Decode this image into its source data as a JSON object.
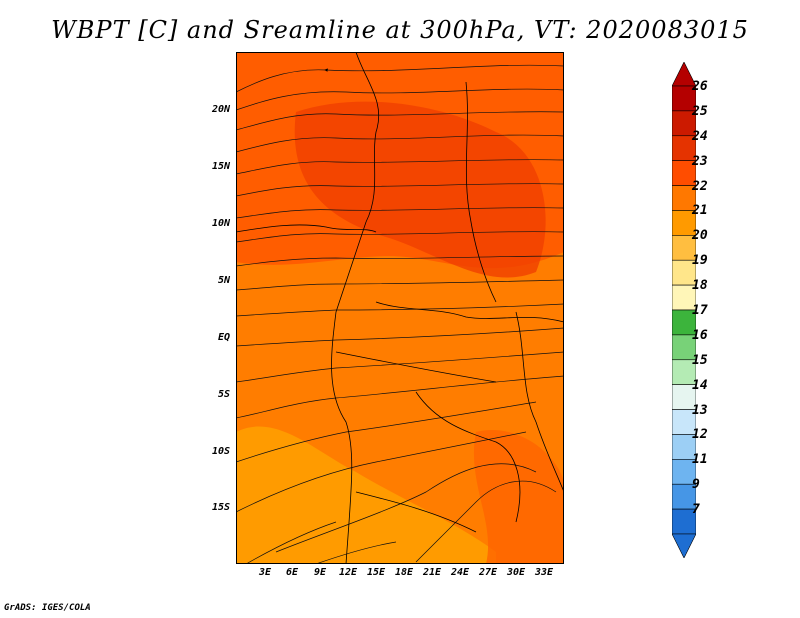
{
  "title": "WBPT [C] and Sreamline at 300hPa, VT: 2020083015",
  "credit": "GrADS: IGES/COLA",
  "lat_labels": [
    "20N",
    "15N",
    "10N",
    "5N",
    "EQ",
    "5S",
    "10S",
    "15S"
  ],
  "lon_labels": [
    "3E",
    "6E",
    "9E",
    "12E",
    "15E",
    "18E",
    "21E",
    "24E",
    "27E",
    "30E",
    "33E"
  ],
  "colorbar": {
    "labels": [
      "26",
      "25",
      "24",
      "23",
      "22",
      "21",
      "20",
      "19",
      "18",
      "17",
      "16",
      "15",
      "14",
      "13",
      "12",
      "11",
      "9",
      "7"
    ],
    "colors": [
      "#b40000",
      "#cc1a00",
      "#e53300",
      "#ff4d00",
      "#ff7800",
      "#ff9a00",
      "#ffbe40",
      "#ffe68a",
      "#fff6b8",
      "#3cb43c",
      "#78d278",
      "#b4ebb4",
      "#e6f5f0",
      "#c8e6fa",
      "#9ccff5",
      "#6eb4f0",
      "#4696e6",
      "#1e6ed2"
    ]
  }
}
